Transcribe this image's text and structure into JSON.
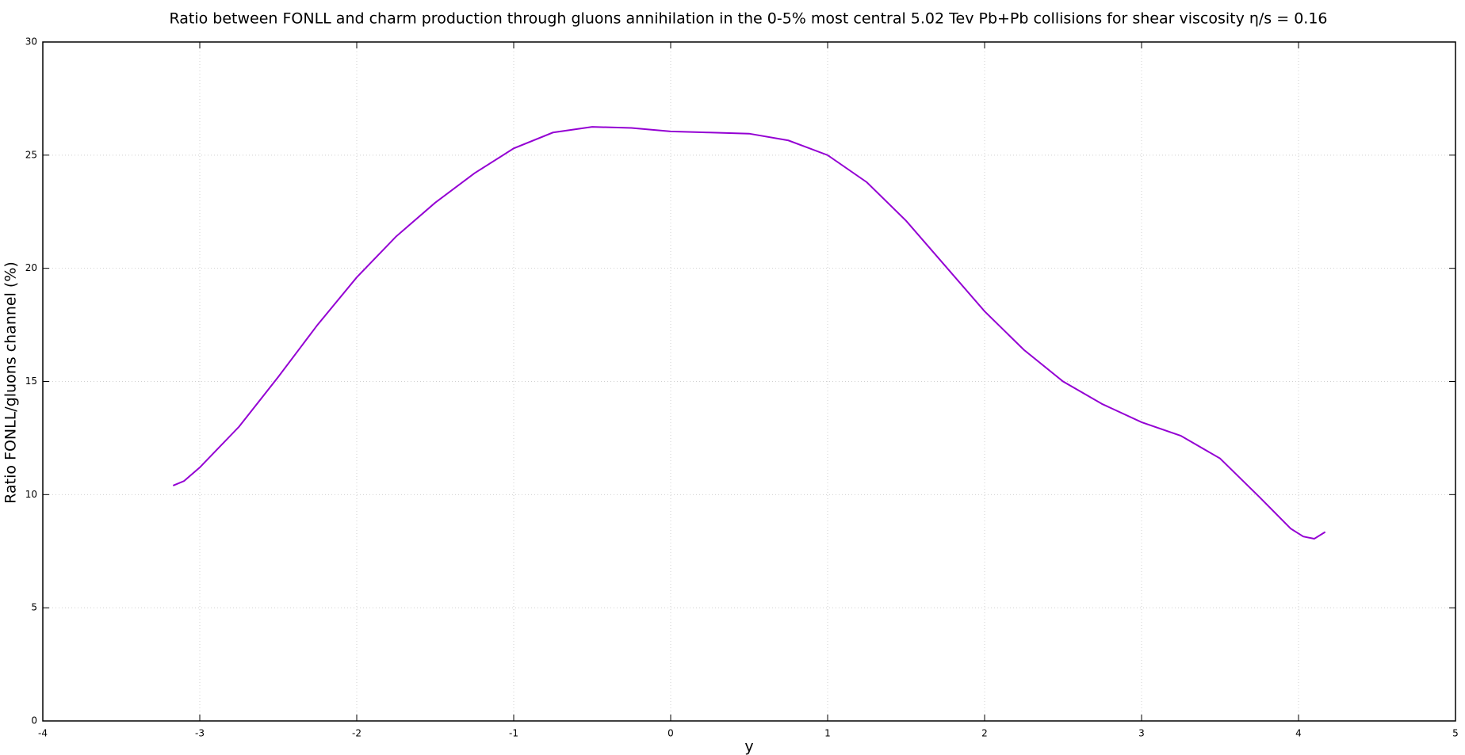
{
  "chart_data": {
    "type": "line",
    "title": "Ratio between FONLL and charm production through gluons annihilation in the 0-5% most central 5.02 Tev Pb+Pb collisions for shear viscosity η/s = 0.16",
    "x_label": "y",
    "y_label": "Ratio FONLL/gluons channel (%)",
    "x": [
      -3.17,
      -3.1,
      -3.0,
      -2.75,
      -2.5,
      -2.25,
      -2.0,
      -1.75,
      -1.5,
      -1.25,
      -1.0,
      -0.75,
      -0.5,
      -0.25,
      0,
      0.25,
      0.5,
      0.75,
      1.0,
      1.25,
      1.5,
      1.75,
      2.0,
      2.25,
      2.5,
      2.75,
      3.0,
      3.25,
      3.5,
      3.75,
      3.95,
      4.03,
      4.1,
      4.17
    ],
    "series": [
      {
        "color": "#9400d3",
        "values": [
          10.4,
          10.6,
          11.2,
          13.0,
          15.2,
          17.5,
          19.6,
          21.4,
          22.9,
          24.2,
          25.3,
          26.0,
          26.25,
          26.2,
          26.05,
          26.0,
          25.95,
          25.65,
          25.0,
          23.8,
          22.1,
          20.1,
          18.1,
          16.4,
          15.0,
          14.0,
          13.2,
          12.6,
          11.6,
          9.9,
          8.5,
          8.15,
          8.05,
          8.35
        ]
      }
    ],
    "xlim": [
      -4,
      5
    ],
    "xticks": [
      -4,
      -3,
      -2,
      -1,
      0,
      1,
      2,
      3,
      4,
      5
    ],
    "ylim": [
      0,
      30
    ],
    "yticks": [
      0,
      5,
      10,
      15,
      20,
      25,
      30
    ],
    "grid": true
  }
}
